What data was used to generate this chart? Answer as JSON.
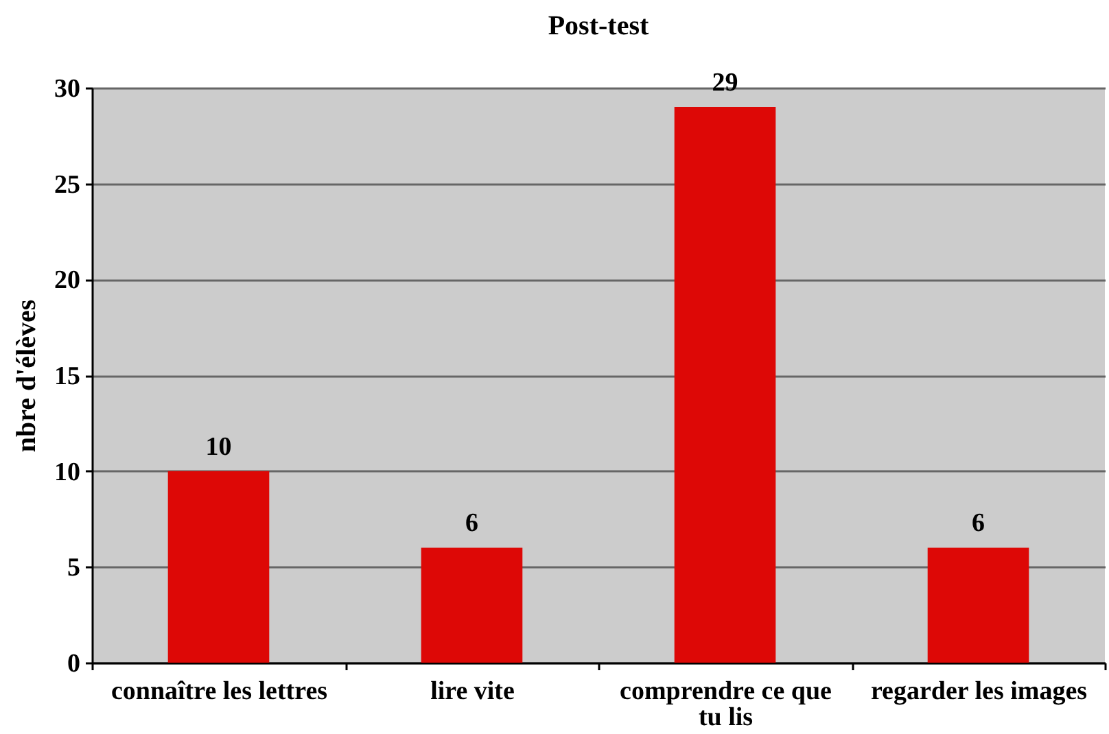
{
  "chart_data": {
    "type": "bar",
    "title": "Post-test",
    "ylabel": "nbre d'élèves",
    "categories": [
      "connaître les lettres",
      "lire vite",
      "comprendre ce que tu lis",
      "regarder les images"
    ],
    "values": [
      10,
      6,
      29,
      6
    ],
    "color": "#dd0806",
    "ylim": [
      0,
      30
    ],
    "yticks": [
      0,
      5,
      10,
      15,
      20,
      25,
      30
    ],
    "grid": "y",
    "data_labels": true
  }
}
